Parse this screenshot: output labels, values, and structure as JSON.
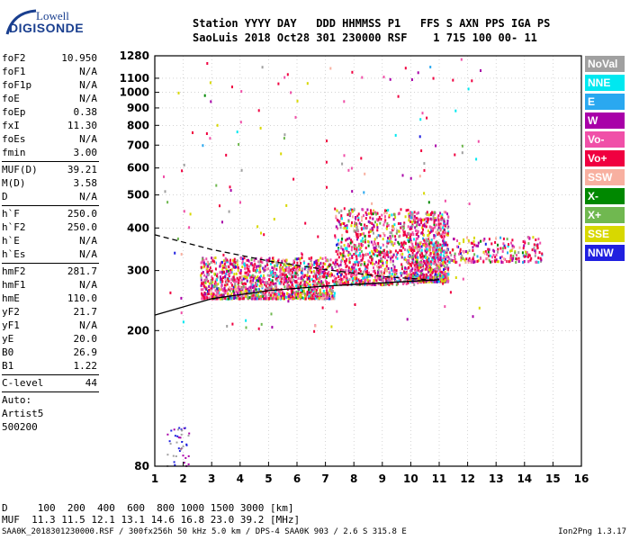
{
  "logo": {
    "line1": "Lowell",
    "line2": "DIGISONDE"
  },
  "header": {
    "line1": "Station YYYY DAY   DDD HHMMSS P1   FFS S AXN PPS IGA PS",
    "line2": "SaoLuis 2018 Oct28 301 230000 RSF    1 715 100 00- 11"
  },
  "params_a": [
    {
      "k": "foF2",
      "v": "10.950"
    },
    {
      "k": "foF1",
      "v": "N/A"
    },
    {
      "k": "foF1p",
      "v": "N/A"
    },
    {
      "k": "foE",
      "v": "N/A"
    },
    {
      "k": "foEp",
      "v": "0.38"
    },
    {
      "k": "fxI",
      "v": "11.30"
    },
    {
      "k": "foEs",
      "v": "N/A"
    },
    {
      "k": "fmin",
      "v": "3.00"
    }
  ],
  "params_b": [
    {
      "k": "MUF(D)",
      "v": "39.21"
    },
    {
      "k": "M(D)",
      "v": "3.58"
    },
    {
      "k": "D",
      "v": "N/A"
    }
  ],
  "params_c": [
    {
      "k": "h`F",
      "v": "250.0"
    },
    {
      "k": "h`F2",
      "v": "250.0"
    },
    {
      "k": "h`E",
      "v": "N/A"
    },
    {
      "k": "h`Es",
      "v": "N/A"
    }
  ],
  "params_d": [
    {
      "k": "hmF2",
      "v": "281.7"
    },
    {
      "k": "hmF1",
      "v": "N/A"
    },
    {
      "k": "hmE",
      "v": "110.0"
    },
    {
      "k": "yF2",
      "v": "21.7"
    },
    {
      "k": "yF1",
      "v": "N/A"
    },
    {
      "k": "yE",
      "v": "20.0"
    },
    {
      "k": "B0",
      "v": "26.9"
    },
    {
      "k": "B1",
      "v": "1.22"
    }
  ],
  "clevel": {
    "k": "C-level",
    "v": "44"
  },
  "auto": {
    "line1": "Auto:",
    "line2": "Artist5",
    "line3": "500200"
  },
  "legend": [
    {
      "label": "NoVal",
      "color": "#a0a0a0"
    },
    {
      "label": "NNE",
      "color": "#00e8f0"
    },
    {
      "label": "E",
      "color": "#2aa8f0"
    },
    {
      "label": "W",
      "color": "#a800a8"
    },
    {
      "label": "Vo-",
      "color": "#f050a8"
    },
    {
      "label": "Vo+",
      "color": "#f00040"
    },
    {
      "label": "SSW",
      "color": "#f8b0a0"
    },
    {
      "label": "X-",
      "color": "#008800"
    },
    {
      "label": "X+",
      "color": "#70b850"
    },
    {
      "label": "SSE",
      "color": "#d8d800"
    },
    {
      "label": "NNW",
      "color": "#2020e0"
    }
  ],
  "footer": {
    "line1": "D     100  200  400  600  800 1000 1500 3000 [km]",
    "line2": "MUF  11.3 11.5 12.1 13.1 14.6 16.8 23.0 39.2 [MHz]"
  },
  "bottom": {
    "left": "SAA0K_2018301230000.RSF / 300fx256h 50 kHz 5.0 km / DPS-4 SAA0K 903 / 2.6 S 315.8 E",
    "right": "Ion2Png 1.3.17"
  },
  "chart_data": {
    "type": "scatter",
    "title": "",
    "xlabel": "",
    "ylabel": "",
    "xlim": [
      1,
      16
    ],
    "ylim": [
      80,
      1280
    ],
    "y_scale": "log",
    "x_ticks": [
      1,
      2,
      3,
      4,
      5,
      6,
      7,
      8,
      9,
      10,
      11,
      12,
      13,
      14,
      15,
      16
    ],
    "y_ticks": [
      80,
      200,
      300,
      400,
      500,
      600,
      700,
      800,
      900,
      1000,
      1100,
      1280
    ],
    "grid": true,
    "grid_style": "dotted",
    "traces": [
      {
        "name": "",
        "style": "solid",
        "x": [
          1.0,
          3.0,
          5.0,
          7.0,
          9.0,
          11.0
        ],
        "y": [
          222,
          248,
          262,
          270,
          276,
          282
        ]
      },
      {
        "name": "",
        "style": "dashed",
        "x": [
          1.0,
          3.0,
          5.0,
          7.0,
          9.0,
          10.9
        ],
        "y": [
          382,
          346,
          320,
          302,
          288,
          281
        ]
      }
    ],
    "echo_clusters": [
      {
        "x0": 2.6,
        "x1": 7.3,
        "y0": 250,
        "y1": 330
      },
      {
        "x0": 7.3,
        "x1": 9.9,
        "y0": 275,
        "y1": 460
      },
      {
        "x0": 9.9,
        "x1": 11.3,
        "y0": 280,
        "y1": 450
      },
      {
        "x0": 11.3,
        "x1": 14.6,
        "y0": 320,
        "y1": 380
      }
    ]
  }
}
